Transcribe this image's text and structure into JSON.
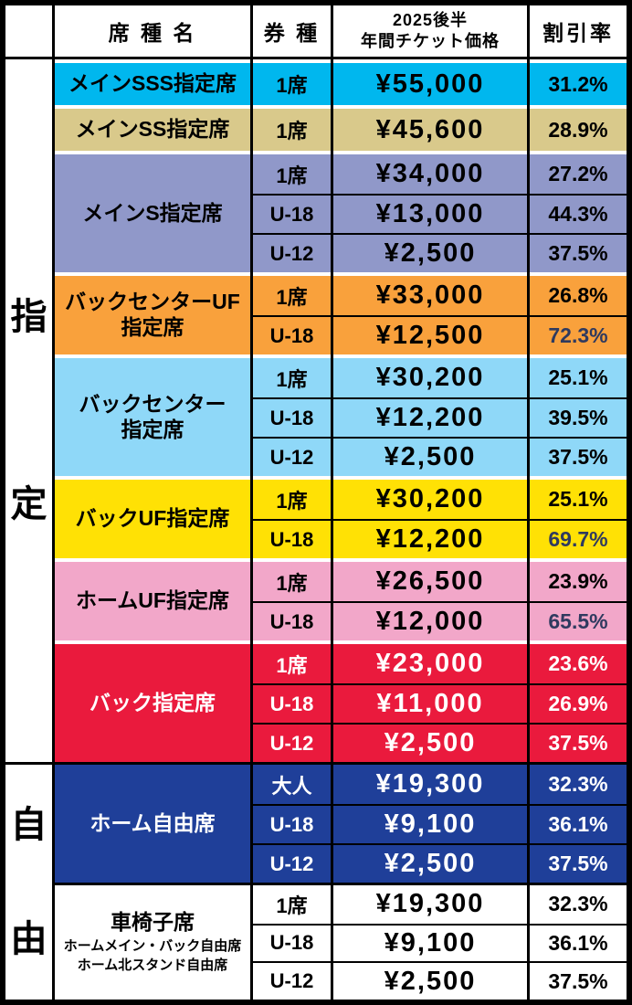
{
  "header": {
    "seat": "席 種 名",
    "ticket": "券 種",
    "price_line1": "2025後半",
    "price_line2": "年間チケット価格",
    "discount": "割引率"
  },
  "side_labels": {
    "reserved": [
      "指",
      "定"
    ],
    "free": [
      "自",
      "由"
    ]
  },
  "colors": {
    "border": "#000000",
    "highlight_discount": "#2f3a5f",
    "cyan": "#00b7ee",
    "tan": "#d9c98b",
    "periwinkle": "#9098c9",
    "orange": "#f9a13c",
    "light_blue": "#8fd8f8",
    "yellow": "#ffe105",
    "pink": "#f2a7c9",
    "red": "#ea1a3d",
    "dark_blue": "#1f3f99",
    "white": "#ffffff"
  },
  "groups": [
    {
      "id": "main-sss",
      "section": "reserved",
      "name": "メインSSS指定席",
      "bg": "#00b7ee",
      "fg": "#000000",
      "rows": [
        {
          "ticket": "1席",
          "price": "¥55,000",
          "discount": "31.2%",
          "highlight": false
        }
      ]
    },
    {
      "id": "main-ss",
      "section": "reserved",
      "name": "メインSS指定席",
      "bg": "#d9c98b",
      "fg": "#000000",
      "rows": [
        {
          "ticket": "1席",
          "price": "¥45,600",
          "discount": "28.9%",
          "highlight": false
        }
      ]
    },
    {
      "id": "main-s",
      "section": "reserved",
      "name": "メインS指定席",
      "bg": "#9098c9",
      "fg": "#000000",
      "rows": [
        {
          "ticket": "1席",
          "price": "¥34,000",
          "discount": "27.2%",
          "highlight": false
        },
        {
          "ticket": "U-18",
          "price": "¥13,000",
          "discount": "44.3%",
          "highlight": false
        },
        {
          "ticket": "U-12",
          "price": "¥2,500",
          "discount": "37.5%",
          "highlight": false
        }
      ]
    },
    {
      "id": "back-center-uf",
      "section": "reserved",
      "name": "バックセンターUF",
      "name2": "指定席",
      "bg": "#f9a13c",
      "fg": "#000000",
      "rows": [
        {
          "ticket": "1席",
          "price": "¥33,000",
          "discount": "26.8%",
          "highlight": false
        },
        {
          "ticket": "U-18",
          "price": "¥12,500",
          "discount": "72.3%",
          "highlight": true
        }
      ]
    },
    {
      "id": "back-center",
      "section": "reserved",
      "name": "バックセンター",
      "name2": "指定席",
      "bg": "#8fd8f8",
      "fg": "#000000",
      "rows": [
        {
          "ticket": "1席",
          "price": "¥30,200",
          "discount": "25.1%",
          "highlight": false
        },
        {
          "ticket": "U-18",
          "price": "¥12,200",
          "discount": "39.5%",
          "highlight": false
        },
        {
          "ticket": "U-12",
          "price": "¥2,500",
          "discount": "37.5%",
          "highlight": false
        }
      ]
    },
    {
      "id": "back-uf",
      "section": "reserved",
      "name": "バックUF指定席",
      "bg": "#ffe105",
      "fg": "#000000",
      "rows": [
        {
          "ticket": "1席",
          "price": "¥30,200",
          "discount": "25.1%",
          "highlight": false
        },
        {
          "ticket": "U-18",
          "price": "¥12,200",
          "discount": "69.7%",
          "highlight": true
        }
      ]
    },
    {
      "id": "home-uf",
      "section": "reserved",
      "name": "ホームUF指定席",
      "bg": "#f2a7c9",
      "fg": "#000000",
      "rows": [
        {
          "ticket": "1席",
          "price": "¥26,500",
          "discount": "23.9%",
          "highlight": false
        },
        {
          "ticket": "U-18",
          "price": "¥12,000",
          "discount": "65.5%",
          "highlight": true
        }
      ]
    },
    {
      "id": "back",
      "section": "reserved",
      "name": "バック指定席",
      "bg": "#ea1a3d",
      "fg": "#ffffff",
      "rows": [
        {
          "ticket": "1席",
          "price": "¥23,000",
          "discount": "23.6%",
          "highlight": false
        },
        {
          "ticket": "U-18",
          "price": "¥11,000",
          "discount": "26.9%",
          "highlight": false
        },
        {
          "ticket": "U-12",
          "price": "¥2,500",
          "discount": "37.5%",
          "highlight": false
        }
      ]
    },
    {
      "id": "home-free",
      "section": "free",
      "name": "ホーム自由席",
      "bg": "#1f3f99",
      "fg": "#ffffff",
      "rows": [
        {
          "ticket": "大人",
          "price": "¥19,300",
          "discount": "32.3%",
          "highlight": false
        },
        {
          "ticket": "U-18",
          "price": "¥9,100",
          "discount": "36.1%",
          "highlight": false
        },
        {
          "ticket": "U-12",
          "price": "¥2,500",
          "discount": "37.5%",
          "highlight": false
        }
      ]
    },
    {
      "id": "wheelchair",
      "section": "free",
      "name": "車椅子席",
      "sub": [
        "ホームメイン・バック自由席",
        "ホーム北スタンド自由席"
      ],
      "bg": "#ffffff",
      "fg": "#000000",
      "rows": [
        {
          "ticket": "1席",
          "price": "¥19,300",
          "discount": "32.3%",
          "highlight": false
        },
        {
          "ticket": "U-18",
          "price": "¥9,100",
          "discount": "36.1%",
          "highlight": false
        },
        {
          "ticket": "U-12",
          "price": "¥2,500",
          "discount": "37.5%",
          "highlight": false
        }
      ]
    }
  ]
}
